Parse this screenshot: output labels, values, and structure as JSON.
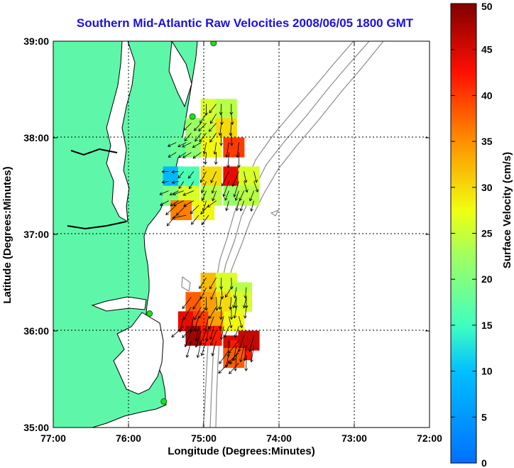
{
  "chart_data": {
    "type": "heatmap",
    "title": "Southern Mid-Atlantic Raw Velocities 2008/06/05 1800 GMT",
    "xlabel": "Longitude (Degrees:Minutes)",
    "ylabel": "Latitude (Degrees:Minutes)",
    "x_ticks": [
      "77:00",
      "76:00",
      "75:00",
      "74:00",
      "73:00",
      "72:00"
    ],
    "y_ticks": [
      "39:00",
      "38:00",
      "37:00",
      "36:00",
      "35:00"
    ],
    "xlim": [
      -77,
      -72
    ],
    "ylim": [
      35,
      39
    ],
    "grid": true,
    "colorbar": {
      "label": "Surface Velocity (cm/s)",
      "ticks": [
        "0",
        "5",
        "10",
        "15",
        "20",
        "25",
        "30",
        "35",
        "40",
        "45",
        "50"
      ],
      "range": [
        0,
        50
      ],
      "colormap": "jet"
    },
    "colors": {
      "land": "#5ef7a9",
      "coast": "#000000",
      "bathymetry": "#8c8c8c",
      "station": "#22dd22",
      "title": "#1a10e6"
    },
    "stations": [
      {
        "lon": -74.87,
        "lat": 38.98
      },
      {
        "lon": -75.15,
        "lat": 38.22
      },
      {
        "lon": -75.72,
        "lat": 36.18
      },
      {
        "lon": -75.53,
        "lat": 35.27
      }
    ],
    "velocity_cells": [
      {
        "lon": -74.9,
        "lat": 38.3,
        "speed": 26,
        "dir": 200
      },
      {
        "lon": -74.7,
        "lat": 38.3,
        "speed": 24,
        "dir": 190
      },
      {
        "lon": -75.1,
        "lat": 38.1,
        "speed": 22,
        "dir": 220
      },
      {
        "lon": -74.9,
        "lat": 38.1,
        "speed": 25,
        "dir": 205
      },
      {
        "lon": -74.7,
        "lat": 38.1,
        "speed": 30,
        "dir": 195
      },
      {
        "lon": -75.3,
        "lat": 37.9,
        "speed": 18,
        "dir": 240
      },
      {
        "lon": -75.1,
        "lat": 37.9,
        "speed": 21,
        "dir": 225
      },
      {
        "lon": -74.9,
        "lat": 37.9,
        "speed": 28,
        "dir": 200
      },
      {
        "lon": -74.6,
        "lat": 37.9,
        "speed": 40,
        "dir": 185
      },
      {
        "lon": -75.4,
        "lat": 37.6,
        "speed": 9,
        "dir": 250
      },
      {
        "lon": -75.2,
        "lat": 37.6,
        "speed": 16,
        "dir": 230
      },
      {
        "lon": -74.9,
        "lat": 37.6,
        "speed": 30,
        "dir": 205
      },
      {
        "lon": -74.6,
        "lat": 37.6,
        "speed": 44,
        "dir": 190
      },
      {
        "lon": -74.4,
        "lat": 37.6,
        "speed": 26,
        "dir": 180
      },
      {
        "lon": -75.4,
        "lat": 37.4,
        "speed": 20,
        "dir": 245
      },
      {
        "lon": -75.2,
        "lat": 37.4,
        "speed": 26,
        "dir": 235
      },
      {
        "lon": -74.9,
        "lat": 37.4,
        "speed": 24,
        "dir": 215
      },
      {
        "lon": -74.6,
        "lat": 37.4,
        "speed": 22,
        "dir": 200
      },
      {
        "lon": -74.4,
        "lat": 37.4,
        "speed": 24,
        "dir": 190
      },
      {
        "lon": -75.3,
        "lat": 37.25,
        "speed": 36,
        "dir": 240
      },
      {
        "lon": -75.0,
        "lat": 37.25,
        "speed": 28,
        "dir": 225
      },
      {
        "lon": -74.9,
        "lat": 36.5,
        "speed": 32,
        "dir": 200
      },
      {
        "lon": -74.7,
        "lat": 36.5,
        "speed": 26,
        "dir": 195
      },
      {
        "lon": -74.5,
        "lat": 36.4,
        "speed": 24,
        "dir": 190
      },
      {
        "lon": -75.1,
        "lat": 36.3,
        "speed": 38,
        "dir": 205
      },
      {
        "lon": -74.9,
        "lat": 36.3,
        "speed": 34,
        "dir": 195
      },
      {
        "lon": -74.7,
        "lat": 36.3,
        "speed": 30,
        "dir": 190
      },
      {
        "lon": -74.5,
        "lat": 36.3,
        "speed": 26,
        "dir": 185
      },
      {
        "lon": -75.2,
        "lat": 36.1,
        "speed": 44,
        "dir": 210
      },
      {
        "lon": -75.0,
        "lat": 36.1,
        "speed": 40,
        "dir": 200
      },
      {
        "lon": -74.8,
        "lat": 36.1,
        "speed": 34,
        "dir": 190
      },
      {
        "lon": -74.6,
        "lat": 36.1,
        "speed": 28,
        "dir": 185
      },
      {
        "lon": -75.1,
        "lat": 35.95,
        "speed": 48,
        "dir": 205
      },
      {
        "lon": -74.9,
        "lat": 35.95,
        "speed": 42,
        "dir": 195
      },
      {
        "lon": -74.6,
        "lat": 35.85,
        "speed": 45,
        "dir": 200
      },
      {
        "lon": -74.5,
        "lat": 35.8,
        "speed": 42,
        "dir": 195
      },
      {
        "lon": -74.4,
        "lat": 35.9,
        "speed": 46,
        "dir": 190
      },
      {
        "lon": -74.6,
        "lat": 35.72,
        "speed": 38,
        "dir": 210
      }
    ]
  }
}
